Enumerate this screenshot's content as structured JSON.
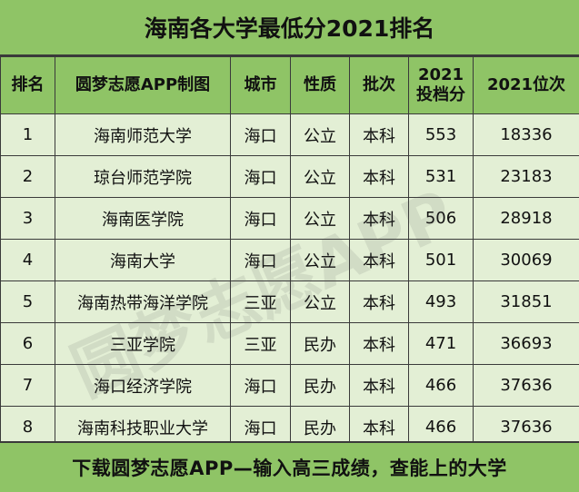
{
  "title": "海南各大学最低分2021排名",
  "headers": [
    "排名",
    "圆梦志愿APP制图",
    "城市",
    "性质",
    "批次",
    "2021\n投档分",
    "2021位次"
  ],
  "header_score_line1": "2021",
  "header_score_line2": "投档分",
  "rows": [
    {
      "rank": "1",
      "school": "海南师范大学",
      "city": "海口",
      "type": "公立",
      "batch": "本科",
      "score": "553",
      "position": "18336"
    },
    {
      "rank": "2",
      "school": "琼台师范学院",
      "city": "海口",
      "type": "公立",
      "batch": "本科",
      "score": "531",
      "position": "23183"
    },
    {
      "rank": "3",
      "school": "海南医学院",
      "city": "海口",
      "type": "公立",
      "batch": "本科",
      "score": "506",
      "position": "28918"
    },
    {
      "rank": "4",
      "school": "海南大学",
      "city": "海口",
      "type": "公立",
      "batch": "本科",
      "score": "501",
      "position": "30069"
    },
    {
      "rank": "5",
      "school": "海南热带海洋学院",
      "city": "三亚",
      "type": "公立",
      "batch": "本科",
      "score": "493",
      "position": "31851"
    },
    {
      "rank": "6",
      "school": "三亚学院",
      "city": "三亚",
      "type": "民办",
      "batch": "本科",
      "score": "471",
      "position": "36693"
    },
    {
      "rank": "7",
      "school": "海口经济学院",
      "city": "海口",
      "type": "民办",
      "batch": "本科",
      "score": "466",
      "position": "37636"
    },
    {
      "rank": "8",
      "school": "海南科技职业大学",
      "city": "海口",
      "type": "民办",
      "batch": "本科",
      "score": "466",
      "position": "37636"
    }
  ],
  "footer": "下载圆梦志愿APP—输入高三成绩，查能上的大学",
  "watermark": "圆梦志愿APP",
  "colors": {
    "header_bg": "#8fc466",
    "row_bg": "#e3efd5",
    "border": "#3a3a3a"
  }
}
